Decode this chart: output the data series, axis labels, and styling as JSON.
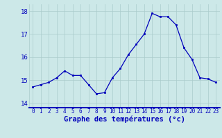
{
  "hours": [
    0,
    1,
    2,
    3,
    4,
    5,
    6,
    7,
    8,
    9,
    10,
    11,
    12,
    13,
    14,
    15,
    16,
    17,
    18,
    19,
    20,
    21,
    22,
    23
  ],
  "temps": [
    14.7,
    14.8,
    14.9,
    15.1,
    15.4,
    15.2,
    15.2,
    14.8,
    14.4,
    14.45,
    15.1,
    15.5,
    16.1,
    16.55,
    17.0,
    17.9,
    17.75,
    17.75,
    17.4,
    16.4,
    15.9,
    15.1,
    15.05,
    14.9
  ],
  "xlim": [
    -0.5,
    23.5
  ],
  "ylim": [
    13.8,
    18.3
  ],
  "yticks": [
    14,
    15,
    16,
    17,
    18
  ],
  "xtick_labels": [
    "0",
    "1",
    "2",
    "3",
    "4",
    "5",
    "6",
    "7",
    "8",
    "9",
    "10",
    "11",
    "12",
    "13",
    "14",
    "15",
    "16",
    "17",
    "18",
    "19",
    "20",
    "21",
    "22",
    "23"
  ],
  "xlabel": "Graphe des températures (°c)",
  "line_color": "#0000bb",
  "marker_color": "#0000bb",
  "bg_color": "#cce8e8",
  "grid_color": "#aacccc",
  "xlabel_color": "#0000bb",
  "axis_bottom_color": "#0000bb",
  "xlabel_fontsize": 7.5,
  "xtick_fontsize": 5.5,
  "ytick_fontsize": 6.5
}
